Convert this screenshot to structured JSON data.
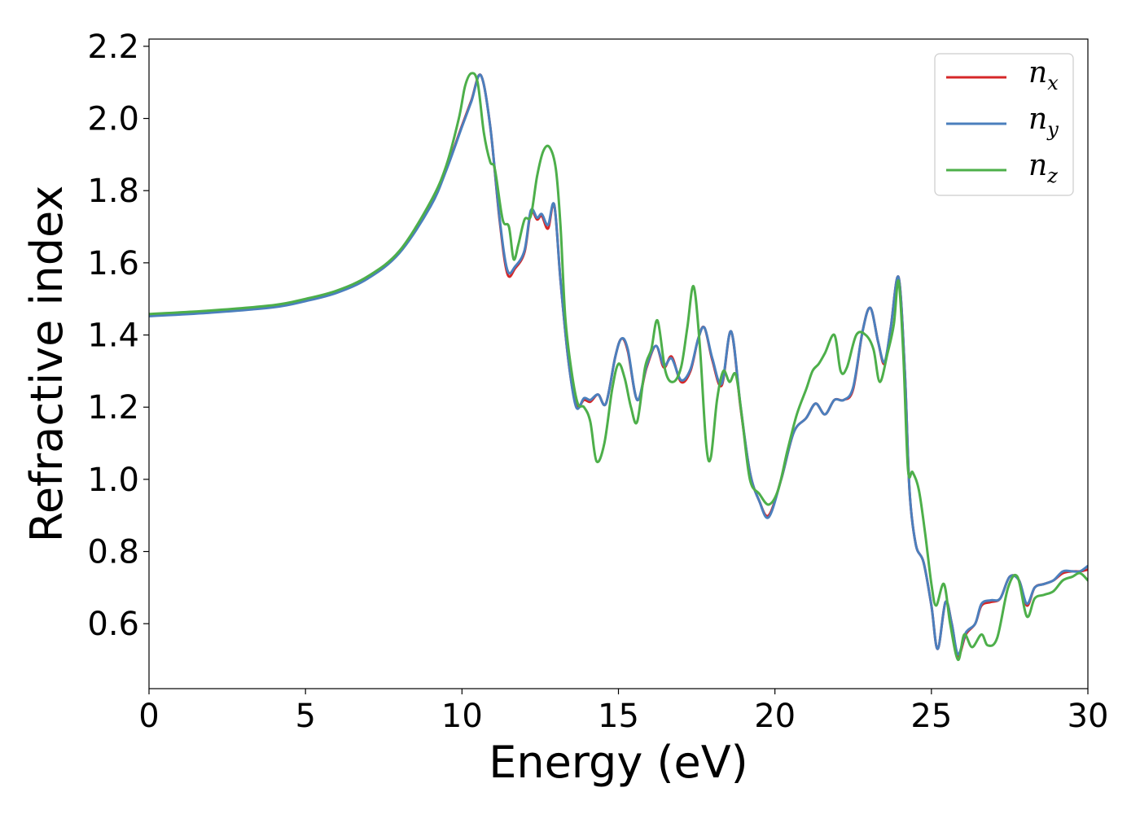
{
  "chart_data": {
    "type": "line",
    "title": "",
    "xlabel": "Energy (eV)",
    "ylabel": "Refractive index",
    "xlim": [
      0,
      30
    ],
    "ylim": [
      0.42,
      2.22
    ],
    "xticks": [
      0,
      5,
      10,
      15,
      20,
      25,
      30
    ],
    "xtick_labels": [
      "0",
      "5",
      "10",
      "15",
      "20",
      "25",
      "30"
    ],
    "yticks": [
      0.6,
      0.8,
      1.0,
      1.2,
      1.4,
      1.6,
      1.8,
      2.0,
      2.2
    ],
    "ytick_labels": [
      "0.6",
      "0.8",
      "1.0",
      "1.2",
      "1.4",
      "1.6",
      "1.8",
      "2.0",
      "2.2"
    ],
    "grid": false,
    "legend_position": "top-right",
    "series": [
      {
        "name": "n_x",
        "label_base": "n",
        "label_sub": "x",
        "color": "#d62728",
        "x": [
          0,
          2,
          4,
          5,
          6,
          7,
          8,
          9,
          9.5,
          10,
          10.3,
          10.6,
          10.9,
          11.2,
          11.45,
          11.7,
          12.0,
          12.2,
          12.4,
          12.55,
          12.75,
          12.95,
          13.15,
          13.4,
          13.65,
          13.9,
          14.1,
          14.35,
          14.6,
          14.9,
          15.1,
          15.3,
          15.6,
          15.9,
          16.2,
          16.45,
          16.7,
          17.0,
          17.3,
          17.55,
          17.75,
          18.0,
          18.3,
          18.6,
          18.9,
          19.2,
          19.5,
          19.8,
          20.2,
          20.6,
          21.0,
          21.3,
          21.6,
          21.9,
          22.2,
          22.5,
          22.8,
          23.05,
          23.3,
          23.5,
          23.7,
          23.95,
          24.15,
          24.3,
          24.5,
          24.75,
          25.0,
          25.2,
          25.45,
          25.65,
          25.85,
          26.1,
          26.4,
          26.6,
          26.9,
          27.2,
          27.5,
          27.8,
          28.05,
          28.3,
          28.6,
          28.9,
          29.2,
          29.5,
          29.75,
          30
        ],
        "y": [
          1.455,
          1.465,
          1.48,
          1.497,
          1.52,
          1.56,
          1.63,
          1.76,
          1.86,
          1.98,
          2.05,
          2.12,
          1.98,
          1.72,
          1.57,
          1.585,
          1.63,
          1.74,
          1.72,
          1.73,
          1.695,
          1.76,
          1.55,
          1.33,
          1.205,
          1.22,
          1.215,
          1.235,
          1.21,
          1.34,
          1.39,
          1.355,
          1.22,
          1.31,
          1.37,
          1.31,
          1.34,
          1.27,
          1.3,
          1.39,
          1.42,
          1.33,
          1.26,
          1.41,
          1.2,
          1.02,
          0.94,
          0.9,
          1.0,
          1.13,
          1.17,
          1.21,
          1.18,
          1.22,
          1.22,
          1.25,
          1.41,
          1.475,
          1.38,
          1.32,
          1.42,
          1.56,
          1.3,
          0.97,
          0.82,
          0.77,
          0.65,
          0.53,
          0.66,
          0.6,
          0.51,
          0.57,
          0.6,
          0.65,
          0.66,
          0.67,
          0.73,
          0.72,
          0.65,
          0.7,
          0.71,
          0.72,
          0.74,
          0.745,
          0.745,
          0.75
        ]
      },
      {
        "name": "n_y",
        "label_base": "n",
        "label_sub": "y",
        "color": "#4b7fbd",
        "x": [
          0,
          2,
          4,
          5,
          6,
          7,
          8,
          9,
          9.5,
          10,
          10.3,
          10.6,
          10.9,
          11.2,
          11.45,
          11.7,
          12.0,
          12.2,
          12.4,
          12.55,
          12.75,
          12.95,
          13.15,
          13.4,
          13.65,
          13.9,
          14.1,
          14.35,
          14.6,
          14.9,
          15.1,
          15.3,
          15.6,
          15.9,
          16.2,
          16.45,
          16.7,
          17.0,
          17.3,
          17.55,
          17.75,
          18.0,
          18.3,
          18.6,
          18.9,
          19.2,
          19.5,
          19.8,
          20.2,
          20.6,
          21.0,
          21.3,
          21.6,
          21.9,
          22.2,
          22.5,
          22.8,
          23.05,
          23.3,
          23.5,
          23.7,
          23.95,
          24.15,
          24.3,
          24.5,
          24.75,
          25.0,
          25.2,
          25.45,
          25.65,
          25.85,
          26.1,
          26.4,
          26.6,
          26.9,
          27.2,
          27.5,
          27.8,
          28.05,
          28.3,
          28.6,
          28.9,
          29.2,
          29.5,
          29.75,
          30
        ],
        "y": [
          1.452,
          1.462,
          1.477,
          1.494,
          1.517,
          1.557,
          1.627,
          1.757,
          1.857,
          1.977,
          2.047,
          2.12,
          1.98,
          1.725,
          1.58,
          1.59,
          1.635,
          1.745,
          1.725,
          1.735,
          1.705,
          1.76,
          1.55,
          1.33,
          1.2,
          1.225,
          1.22,
          1.235,
          1.21,
          1.34,
          1.39,
          1.36,
          1.22,
          1.315,
          1.37,
          1.315,
          1.335,
          1.275,
          1.305,
          1.39,
          1.42,
          1.335,
          1.265,
          1.41,
          1.205,
          1.02,
          0.94,
          0.895,
          1.0,
          1.13,
          1.17,
          1.21,
          1.18,
          1.22,
          1.22,
          1.255,
          1.41,
          1.475,
          1.38,
          1.325,
          1.42,
          1.56,
          1.3,
          0.97,
          0.82,
          0.77,
          0.65,
          0.53,
          0.66,
          0.6,
          0.515,
          0.575,
          0.6,
          0.655,
          0.665,
          0.67,
          0.73,
          0.72,
          0.655,
          0.7,
          0.71,
          0.72,
          0.745,
          0.745,
          0.745,
          0.76
        ]
      },
      {
        "name": "n_z",
        "label_base": "n",
        "label_sub": "z",
        "color": "#4daf4a",
        "x": [
          0,
          2,
          4,
          5,
          6,
          7,
          8,
          9,
          9.5,
          9.9,
          10.1,
          10.3,
          10.5,
          10.7,
          10.9,
          11.05,
          11.3,
          11.5,
          11.65,
          11.8,
          12.0,
          12.2,
          12.4,
          12.6,
          12.8,
          13.0,
          13.15,
          13.3,
          13.5,
          13.7,
          13.9,
          14.1,
          14.3,
          14.55,
          14.8,
          15.0,
          15.2,
          15.4,
          15.6,
          15.85,
          16.05,
          16.25,
          16.5,
          16.75,
          17.0,
          17.2,
          17.4,
          17.6,
          17.8,
          17.95,
          18.15,
          18.35,
          18.55,
          18.75,
          18.95,
          19.2,
          19.5,
          19.8,
          20.1,
          20.4,
          20.7,
          21.0,
          21.2,
          21.4,
          21.6,
          21.9,
          22.1,
          22.3,
          22.6,
          22.9,
          23.15,
          23.35,
          23.6,
          23.8,
          23.95,
          24.1,
          24.25,
          24.4,
          24.6,
          24.8,
          25.0,
          25.15,
          25.4,
          25.6,
          25.85,
          26.05,
          26.3,
          26.6,
          26.8,
          27.1,
          27.45,
          27.75,
          28.05,
          28.3,
          28.6,
          28.9,
          29.2,
          29.5,
          29.75,
          30
        ],
        "y": [
          1.458,
          1.468,
          1.483,
          1.5,
          1.523,
          1.563,
          1.633,
          1.77,
          1.87,
          2.0,
          2.09,
          2.125,
          2.1,
          1.96,
          1.88,
          1.86,
          1.72,
          1.7,
          1.61,
          1.65,
          1.72,
          1.73,
          1.84,
          1.91,
          1.92,
          1.86,
          1.7,
          1.45,
          1.3,
          1.21,
          1.2,
          1.16,
          1.05,
          1.1,
          1.25,
          1.32,
          1.28,
          1.2,
          1.16,
          1.31,
          1.36,
          1.44,
          1.3,
          1.27,
          1.31,
          1.42,
          1.535,
          1.37,
          1.1,
          1.06,
          1.22,
          1.3,
          1.27,
          1.29,
          1.17,
          1.0,
          0.96,
          0.93,
          0.97,
          1.08,
          1.18,
          1.25,
          1.3,
          1.32,
          1.35,
          1.4,
          1.3,
          1.31,
          1.4,
          1.4,
          1.36,
          1.27,
          1.35,
          1.43,
          1.55,
          1.35,
          1.03,
          1.02,
          0.97,
          0.85,
          0.71,
          0.65,
          0.71,
          0.6,
          0.5,
          0.57,
          0.535,
          0.57,
          0.54,
          0.56,
          0.7,
          0.73,
          0.62,
          0.67,
          0.68,
          0.69,
          0.72,
          0.73,
          0.74,
          0.72
        ]
      }
    ]
  }
}
